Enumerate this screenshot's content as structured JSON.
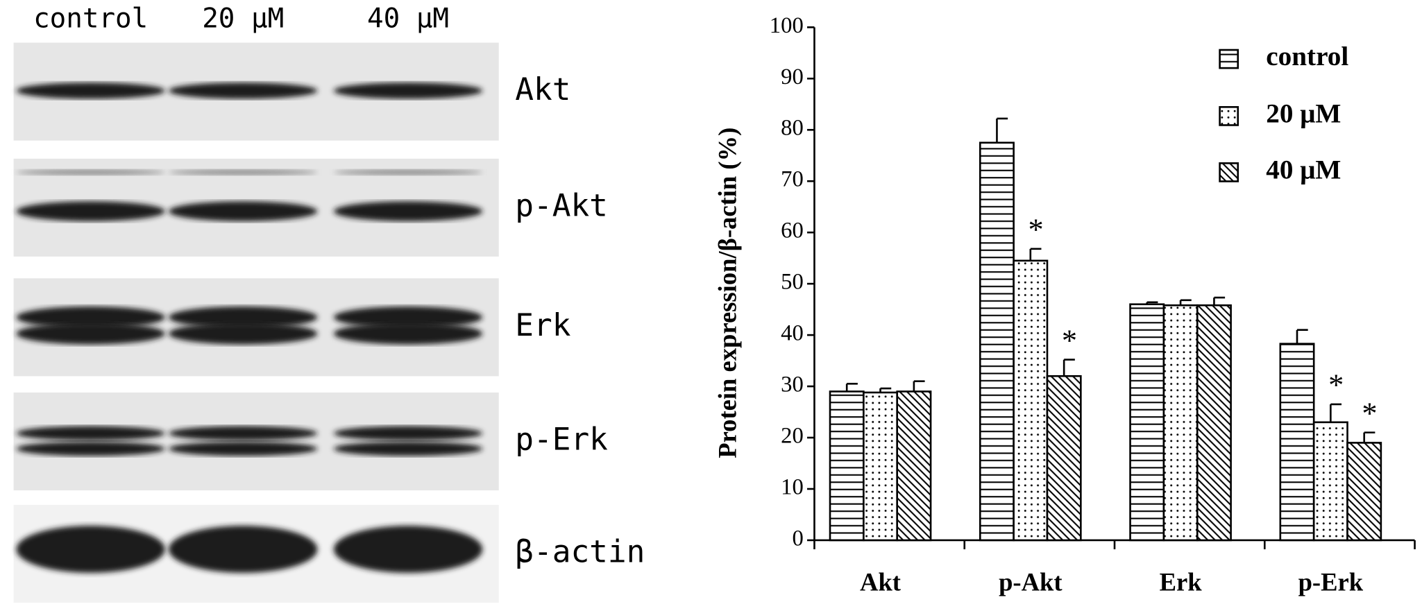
{
  "blot": {
    "lanes": [
      "control",
      "20 μM",
      "40 μM"
    ],
    "bands": [
      "Akt",
      "p-Akt",
      "Erk",
      "p-Erk",
      "β-actin"
    ]
  },
  "chart_data": {
    "type": "bar",
    "ylabel": "Protein expression/β-actin (%)",
    "categories": [
      "Akt",
      "p-Akt",
      "Erk",
      "p-Erk"
    ],
    "series": [
      {
        "name": "control",
        "pattern": "horizontal",
        "values": [
          29,
          77.5,
          46,
          38.3
        ],
        "errors": [
          1.5,
          4.7,
          0.4,
          2.7
        ],
        "annotations": [
          null,
          null,
          null,
          null
        ]
      },
      {
        "name": "20 μM",
        "pattern": "dots",
        "values": [
          28.8,
          54.5,
          45.8,
          23
        ],
        "errors": [
          0.8,
          2.3,
          1,
          3.5
        ],
        "annotations": [
          null,
          "*",
          null,
          "*"
        ]
      },
      {
        "name": "40 μM",
        "pattern": "diagonal",
        "values": [
          29,
          32,
          45.8,
          19
        ],
        "errors": [
          2,
          3.2,
          1.5,
          2
        ],
        "annotations": [
          null,
          "*",
          null,
          "*"
        ]
      }
    ],
    "ylim": [
      0,
      100
    ],
    "yticks": [
      0,
      10,
      20,
      30,
      40,
      50,
      60,
      70,
      80,
      90,
      100
    ],
    "legend": "upper right",
    "grid": false
  }
}
